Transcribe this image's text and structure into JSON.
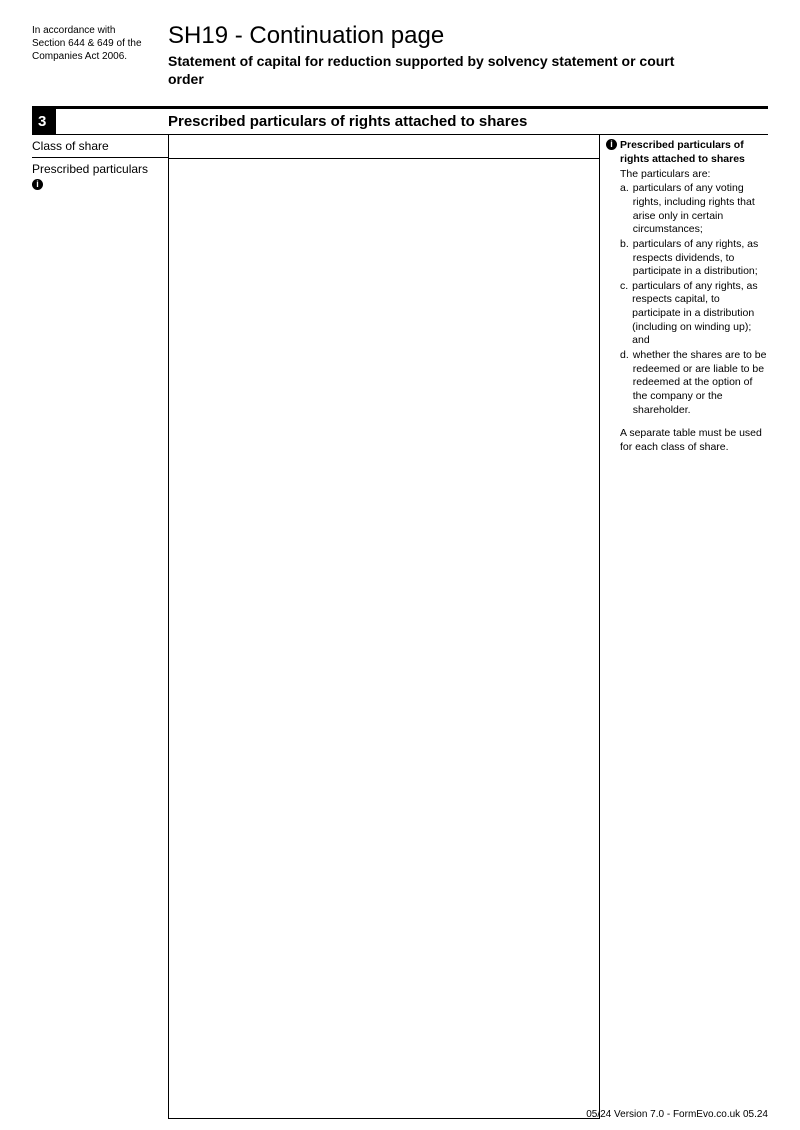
{
  "header": {
    "accordance": "In accordance with Section 644 & 649 of the Companies Act 2006.",
    "title": "SH19 - Continuation page",
    "subtitle": "Statement of capital for reduction supported by solvency statement or court order"
  },
  "section": {
    "number": "3",
    "title": "Prescribed particulars of rights attached to shares"
  },
  "labels": {
    "class_of_share": "Class of share",
    "prescribed_particulars": "Prescribed particulars"
  },
  "notes": {
    "heading": "Prescribed particulars of rights attached to shares",
    "intro": "The particulars are:",
    "items": [
      {
        "letter": "a.",
        "text": "particulars of any voting rights, including rights that arise only in certain circumstances;"
      },
      {
        "letter": "b.",
        "text": "particulars of any rights, as respects dividends, to participate in a distribution;"
      },
      {
        "letter": "c.",
        "text": "particulars of any rights, as respects capital, to participate in a distribution (including on winding up); and"
      },
      {
        "letter": "d.",
        "text": "whether the shares are to be redeemed or are liable to be redeemed at the option of the company or the shareholder."
      }
    ],
    "separate": "A separate table must be used for each class of share."
  },
  "footer": "05/24 Version 7.0 - FormEvo.co.uk 05.24"
}
